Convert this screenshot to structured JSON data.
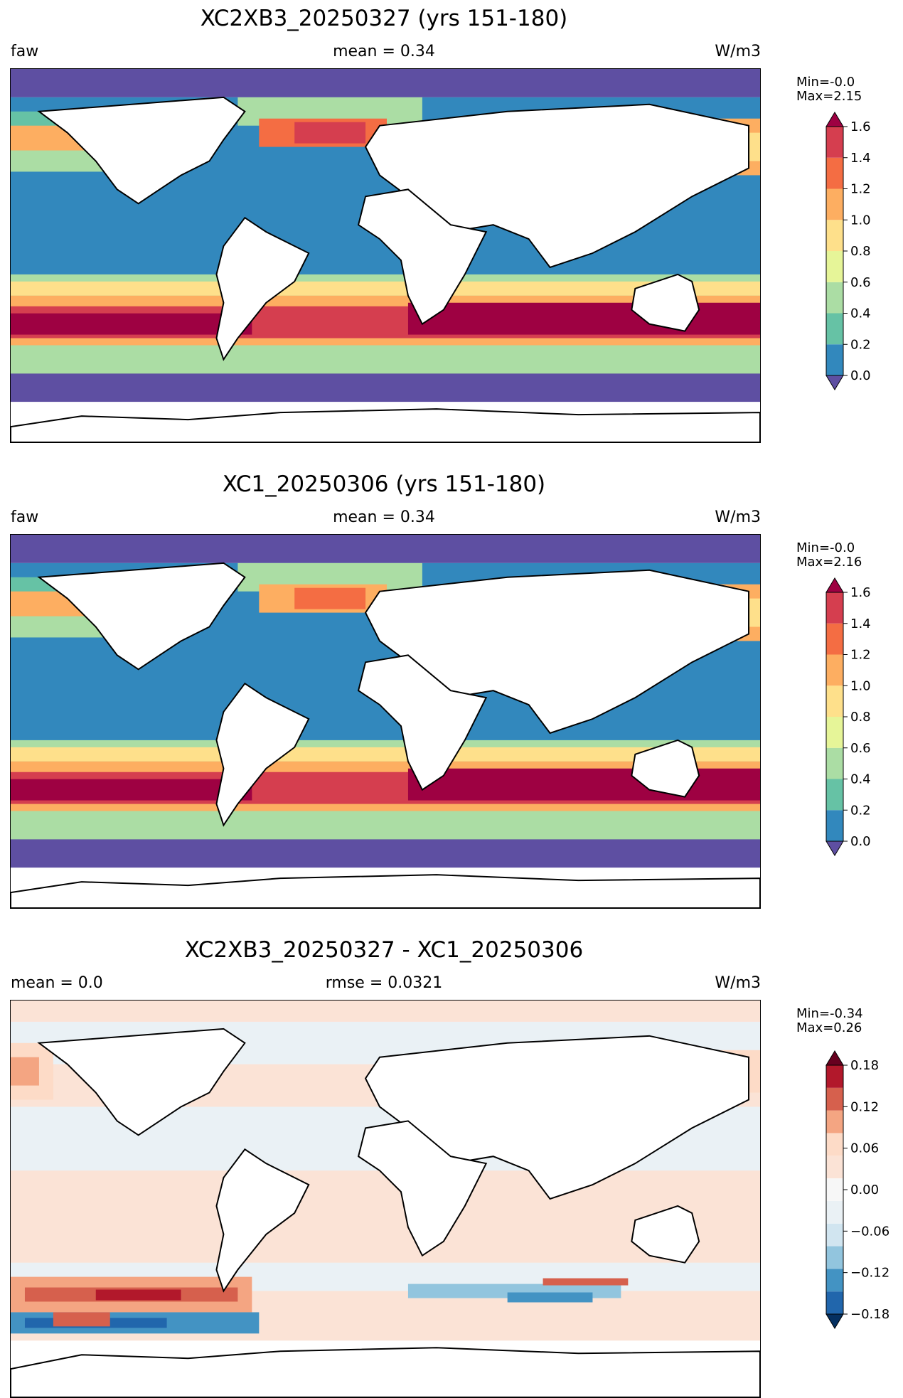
{
  "colors": {
    "spectral": [
      "#5e4fa2",
      "#3288bd",
      "#66c2a5",
      "#abdda4",
      "#e6f598",
      "#fee08b",
      "#fdae61",
      "#f46d43",
      "#d53e4f",
      "#9e0142"
    ],
    "diverging": [
      "#053061",
      "#2166ac",
      "#4393c3",
      "#92c5de",
      "#d1e5f0",
      "#eaf1f5",
      "#f7f7f7",
      "#fbe3d6",
      "#fddbc7",
      "#f4a582",
      "#d6604d",
      "#b2182b",
      "#67001f"
    ],
    "coastline": "#000000"
  },
  "panels": [
    {
      "title": "XC2XB3_20250327 (yrs 151-180)",
      "left": "faw",
      "center": "mean = 0.34",
      "right": "W/m3",
      "minmax": [
        "Min=-0.0",
        "Max=2.15"
      ],
      "colorbar": {
        "ticks": [
          "0.0",
          "0.2",
          "0.4",
          "0.6",
          "0.8",
          "1.0",
          "1.2",
          "1.4",
          "1.6"
        ],
        "palette": "spectral"
      }
    },
    {
      "title": "XC1_20250306 (yrs 151-180)",
      "left": "faw",
      "center": "mean = 0.34",
      "right": "W/m3",
      "minmax": [
        "Min=-0.0",
        "Max=2.16"
      ],
      "colorbar": {
        "ticks": [
          "0.0",
          "0.2",
          "0.4",
          "0.6",
          "0.8",
          "1.0",
          "1.2",
          "1.4",
          "1.6"
        ],
        "palette": "spectral"
      }
    },
    {
      "title": "XC2XB3_20250327 - XC1_20250306",
      "left": "mean = 0.0",
      "center": "rmse = 0.0321",
      "right": "W/m3",
      "minmax": [
        "Min=-0.34",
        "Max=0.26"
      ],
      "colorbar": {
        "ticks": [
          "−0.18",
          "−0.12",
          "−0.06",
          "0.00",
          "0.06",
          "0.12",
          "0.18"
        ],
        "palette": "diverging"
      }
    }
  ],
  "chart_data": [
    {
      "type": "heatmap",
      "title": "XC2XB3_20250327 (yrs 151-180)",
      "variable": "faw",
      "units": "W/m3",
      "mean": 0.34,
      "min": -0.0,
      "max": 2.15,
      "colorbar_range": [
        0.0,
        1.6
      ]
    },
    {
      "type": "heatmap",
      "title": "XC1_20250306 (yrs 151-180)",
      "variable": "faw",
      "units": "W/m3",
      "mean": 0.34,
      "min": -0.0,
      "max": 2.16,
      "colorbar_range": [
        0.0,
        1.6
      ]
    },
    {
      "type": "heatmap",
      "title": "XC2XB3_20250327 - XC1_20250306",
      "units": "W/m3",
      "mean": 0.0,
      "rmse": 0.0321,
      "min": -0.34,
      "max": 0.26,
      "colorbar_range": [
        -0.21,
        0.21
      ]
    }
  ]
}
